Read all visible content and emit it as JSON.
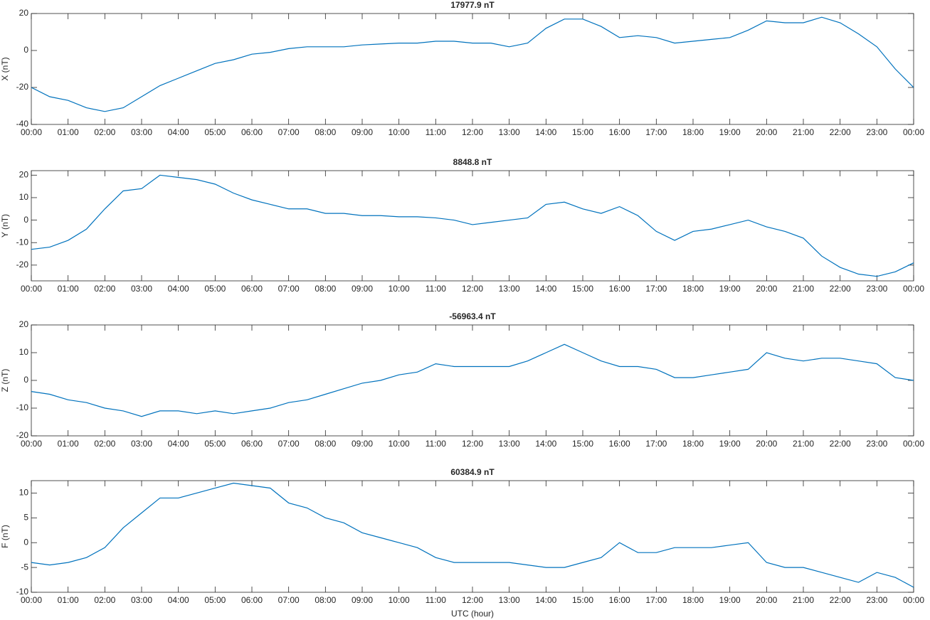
{
  "chart_data": [
    {
      "type": "line",
      "title": "17977.9 nT",
      "ylabel": "X (nT)",
      "color": "#0072bd",
      "x": [
        0,
        0.5,
        1,
        1.5,
        2,
        2.5,
        3,
        3.5,
        4,
        4.5,
        5,
        5.5,
        6,
        6.5,
        7,
        7.5,
        8,
        8.5,
        9,
        9.5,
        10,
        10.5,
        11,
        11.5,
        12,
        12.5,
        13,
        13.5,
        14,
        14.5,
        15,
        15.5,
        16,
        16.5,
        17,
        17.5,
        18,
        18.5,
        19,
        19.5,
        20,
        20.5,
        21,
        21.5,
        22,
        22.5,
        23,
        23.5,
        24
      ],
      "values": [
        -20,
        -25,
        -27,
        -31,
        -33,
        -31,
        -25,
        -19,
        -15,
        -11,
        -7,
        -5,
        -2,
        -1,
        1,
        2,
        2,
        2,
        3,
        3.5,
        4,
        4,
        5,
        5,
        4,
        4,
        2,
        4,
        12,
        17,
        17,
        13,
        7,
        8,
        7,
        4,
        5,
        6,
        7,
        11,
        16,
        15,
        15,
        18,
        15,
        9,
        2,
        -10,
        -20
      ],
      "xlim": [
        0,
        24
      ],
      "ylim": [
        -40,
        20
      ],
      "yticks": [
        -40,
        -20,
        0,
        20
      ],
      "xticks": [
        {
          "value": 0,
          "label": "00:00"
        },
        {
          "value": 1,
          "label": "01:00"
        },
        {
          "value": 2,
          "label": "02:00"
        },
        {
          "value": 3,
          "label": "03:00"
        },
        {
          "value": 4,
          "label": "04:00"
        },
        {
          "value": 5,
          "label": "05:00"
        },
        {
          "value": 6,
          "label": "06:00"
        },
        {
          "value": 7,
          "label": "07:00"
        },
        {
          "value": 8,
          "label": "08:00"
        },
        {
          "value": 9,
          "label": "09:00"
        },
        {
          "value": 10,
          "label": "10:00"
        },
        {
          "value": 11,
          "label": "11:00"
        },
        {
          "value": 12,
          "label": "12:00"
        },
        {
          "value": 13,
          "label": "13:00"
        },
        {
          "value": 14,
          "label": "14:00"
        },
        {
          "value": 15,
          "label": "15:00"
        },
        {
          "value": 16,
          "label": "16:00"
        },
        {
          "value": 17,
          "label": "17:00"
        },
        {
          "value": 18,
          "label": "18:00"
        },
        {
          "value": 19,
          "label": "19:00"
        },
        {
          "value": 20,
          "label": "20:00"
        },
        {
          "value": 21,
          "label": "21:00"
        },
        {
          "value": 22,
          "label": "22:00"
        },
        {
          "value": 23,
          "label": "23:00"
        },
        {
          "value": 24,
          "label": "00:00"
        }
      ]
    },
    {
      "type": "line",
      "title": "8848.8 nT",
      "ylabel": "Y (nT)",
      "color": "#0072bd",
      "x": [
        0,
        0.5,
        1,
        1.5,
        2,
        2.5,
        3,
        3.5,
        4,
        4.5,
        5,
        5.5,
        6,
        6.5,
        7,
        7.5,
        8,
        8.5,
        9,
        9.5,
        10,
        10.5,
        11,
        11.5,
        12,
        12.5,
        13,
        13.5,
        14,
        14.5,
        15,
        15.5,
        16,
        16.5,
        17,
        17.5,
        18,
        18.5,
        19,
        19.5,
        20,
        20.5,
        21,
        21.5,
        22,
        22.5,
        23,
        23.5,
        24
      ],
      "values": [
        -13,
        -12,
        -9,
        -4,
        5,
        13,
        14,
        20,
        19,
        18,
        16,
        12,
        9,
        7,
        5,
        5,
        3,
        3,
        2,
        2,
        1.5,
        1.5,
        1,
        0,
        -2,
        -1,
        0,
        1,
        7,
        8,
        5,
        3,
        6,
        2,
        -5,
        -9,
        -5,
        -4,
        -2,
        0,
        -3,
        -5,
        -8,
        -16,
        -21,
        -24,
        -25,
        -23,
        -19
      ],
      "xlim": [
        0,
        24
      ],
      "ylim": [
        -27,
        22
      ],
      "yticks": [
        -20,
        -10,
        0,
        10,
        20
      ],
      "xticks": [
        {
          "value": 0,
          "label": "00:00"
        },
        {
          "value": 1,
          "label": "01:00"
        },
        {
          "value": 2,
          "label": "02:00"
        },
        {
          "value": 3,
          "label": "03:00"
        },
        {
          "value": 4,
          "label": "04:00"
        },
        {
          "value": 5,
          "label": "05:00"
        },
        {
          "value": 6,
          "label": "06:00"
        },
        {
          "value": 7,
          "label": "07:00"
        },
        {
          "value": 8,
          "label": "08:00"
        },
        {
          "value": 9,
          "label": "09:00"
        },
        {
          "value": 10,
          "label": "10:00"
        },
        {
          "value": 11,
          "label": "11:00"
        },
        {
          "value": 12,
          "label": "12:00"
        },
        {
          "value": 13,
          "label": "13:00"
        },
        {
          "value": 14,
          "label": "14:00"
        },
        {
          "value": 15,
          "label": "15:00"
        },
        {
          "value": 16,
          "label": "16:00"
        },
        {
          "value": 17,
          "label": "17:00"
        },
        {
          "value": 18,
          "label": "18:00"
        },
        {
          "value": 19,
          "label": "19:00"
        },
        {
          "value": 20,
          "label": "20:00"
        },
        {
          "value": 21,
          "label": "21:00"
        },
        {
          "value": 22,
          "label": "22:00"
        },
        {
          "value": 23,
          "label": "23:00"
        },
        {
          "value": 24,
          "label": "00:00"
        }
      ]
    },
    {
      "type": "line",
      "title": "-56963.4 nT",
      "ylabel": "Z (nT)",
      "color": "#0072bd",
      "x": [
        0,
        0.5,
        1,
        1.5,
        2,
        2.5,
        3,
        3.5,
        4,
        4.5,
        5,
        5.5,
        6,
        6.5,
        7,
        7.5,
        8,
        8.5,
        9,
        9.5,
        10,
        10.5,
        11,
        11.5,
        12,
        12.5,
        13,
        13.5,
        14,
        14.5,
        15,
        15.5,
        16,
        16.5,
        17,
        17.5,
        18,
        18.5,
        19,
        19.5,
        20,
        20.5,
        21,
        21.5,
        22,
        22.5,
        23,
        23.5,
        24
      ],
      "values": [
        -4,
        -5,
        -7,
        -8,
        -10,
        -11,
        -13,
        -11,
        -11,
        -12,
        -11,
        -12,
        -11,
        -10,
        -8,
        -7,
        -5,
        -3,
        -1,
        0,
        2,
        3,
        6,
        5,
        5,
        5,
        5,
        7,
        10,
        13,
        10,
        7,
        5,
        5,
        4,
        1,
        1,
        2,
        3,
        4,
        10,
        8,
        7,
        8,
        8,
        7,
        6,
        1,
        0
      ],
      "xlim": [
        0,
        24
      ],
      "ylim": [
        -20,
        20
      ],
      "yticks": [
        -20,
        -10,
        0,
        10,
        20
      ],
      "xticks": [
        {
          "value": 0,
          "label": "00:00"
        },
        {
          "value": 1,
          "label": "01:00"
        },
        {
          "value": 2,
          "label": "02:00"
        },
        {
          "value": 3,
          "label": "03:00"
        },
        {
          "value": 4,
          "label": "04:00"
        },
        {
          "value": 5,
          "label": "05:00"
        },
        {
          "value": 6,
          "label": "06:00"
        },
        {
          "value": 7,
          "label": "07:00"
        },
        {
          "value": 8,
          "label": "08:00"
        },
        {
          "value": 9,
          "label": "09:00"
        },
        {
          "value": 10,
          "label": "10:00"
        },
        {
          "value": 11,
          "label": "11:00"
        },
        {
          "value": 12,
          "label": "12:00"
        },
        {
          "value": 13,
          "label": "13:00"
        },
        {
          "value": 14,
          "label": "14:00"
        },
        {
          "value": 15,
          "label": "15:00"
        },
        {
          "value": 16,
          "label": "16:00"
        },
        {
          "value": 17,
          "label": "17:00"
        },
        {
          "value": 18,
          "label": "18:00"
        },
        {
          "value": 19,
          "label": "19:00"
        },
        {
          "value": 20,
          "label": "20:00"
        },
        {
          "value": 21,
          "label": "21:00"
        },
        {
          "value": 22,
          "label": "22:00"
        },
        {
          "value": 23,
          "label": "23:00"
        },
        {
          "value": 24,
          "label": "00:00"
        }
      ]
    },
    {
      "type": "line",
      "title": "60384.9 nT",
      "ylabel": "F (nT)",
      "xlabel": "UTC (hour)",
      "color": "#0072bd",
      "x": [
        0,
        0.5,
        1,
        1.5,
        2,
        2.5,
        3,
        3.5,
        4,
        4.5,
        5,
        5.5,
        6,
        6.5,
        7,
        7.5,
        8,
        8.5,
        9,
        9.5,
        10,
        10.5,
        11,
        11.5,
        12,
        12.5,
        13,
        13.5,
        14,
        14.5,
        15,
        15.5,
        16,
        16.5,
        17,
        17.5,
        18,
        18.5,
        19,
        19.5,
        20,
        20.5,
        21,
        21.5,
        22,
        22.5,
        23,
        23.5,
        24
      ],
      "values": [
        -4,
        -4.5,
        -4,
        -3,
        -1,
        3,
        6,
        9,
        9,
        10,
        11,
        12,
        11.5,
        11,
        8,
        7,
        5,
        4,
        2,
        1,
        0,
        -1,
        -3,
        -4,
        -4,
        -4,
        -4,
        -4.5,
        -5,
        -5,
        -4,
        -3,
        0,
        -2,
        -2,
        -1,
        -1,
        -1,
        -0.5,
        0,
        -4,
        -5,
        -5,
        -6,
        -7,
        -8,
        -6,
        -7,
        -9
      ],
      "xlim": [
        0,
        24
      ],
      "ylim": [
        -10,
        12.5
      ],
      "yticks": [
        -10,
        -5,
        0,
        5,
        10
      ],
      "xticks": [
        {
          "value": 0,
          "label": "00:00"
        },
        {
          "value": 1,
          "label": "01:00"
        },
        {
          "value": 2,
          "label": "02:00"
        },
        {
          "value": 3,
          "label": "03:00"
        },
        {
          "value": 4,
          "label": "04:00"
        },
        {
          "value": 5,
          "label": "05:00"
        },
        {
          "value": 6,
          "label": "06:00"
        },
        {
          "value": 7,
          "label": "07:00"
        },
        {
          "value": 8,
          "label": "08:00"
        },
        {
          "value": 9,
          "label": "09:00"
        },
        {
          "value": 10,
          "label": "10:00"
        },
        {
          "value": 11,
          "label": "11:00"
        },
        {
          "value": 12,
          "label": "12:00"
        },
        {
          "value": 13,
          "label": "13:00"
        },
        {
          "value": 14,
          "label": "14:00"
        },
        {
          "value": 15,
          "label": "15:00"
        },
        {
          "value": 16,
          "label": "16:00"
        },
        {
          "value": 17,
          "label": "17:00"
        },
        {
          "value": 18,
          "label": "18:00"
        },
        {
          "value": 19,
          "label": "19:00"
        },
        {
          "value": 20,
          "label": "20:00"
        },
        {
          "value": 21,
          "label": "21:00"
        },
        {
          "value": 22,
          "label": "22:00"
        },
        {
          "value": 23,
          "label": "23:00"
        },
        {
          "value": 24,
          "label": "00:00"
        }
      ]
    }
  ]
}
